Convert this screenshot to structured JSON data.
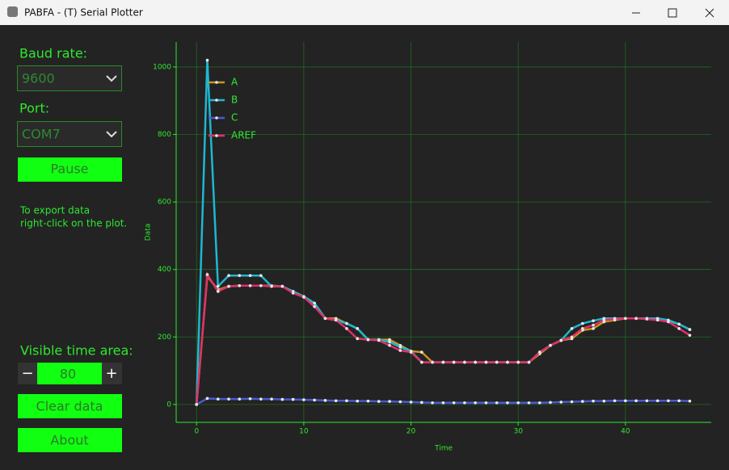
{
  "window": {
    "title": "PABFA - (T) Serial Plotter"
  },
  "controls": {
    "baud_label": "Baud rate:",
    "baud_value": "9600",
    "port_label": "Port:",
    "port_value": "COM7",
    "pause": "Pause",
    "export_hint": [
      "To export data",
      "right-click on the plot."
    ],
    "visible_label": "Visible time area:",
    "minus": "−",
    "visible_value": 80,
    "plus": "+",
    "clear": "Clear data",
    "about": "About"
  },
  "chart_data": {
    "type": "line",
    "x_label": "Time",
    "y_label": "Data",
    "x": [
      0,
      1,
      2,
      3,
      4,
      5,
      6,
      7,
      8,
      9,
      10,
      11,
      12,
      13,
      14,
      15,
      16,
      17,
      18,
      19,
      20,
      21,
      22,
      23,
      24,
      25,
      26,
      27,
      28,
      29,
      30,
      31,
      32,
      33,
      34,
      35,
      36,
      37,
      38,
      39,
      40,
      41,
      42,
      43,
      44,
      45,
      46
    ],
    "series": [
      {
        "name": "A",
        "color": "#c8961e",
        "values": [
          0,
          380,
          340,
          350,
          352,
          352,
          352,
          352,
          350,
          335,
          320,
          300,
          255,
          255,
          240,
          225,
          192,
          192,
          192,
          175,
          158,
          155,
          125,
          125,
          125,
          125,
          125,
          125,
          125,
          125,
          125,
          125,
          150,
          175,
          190,
          195,
          220,
          225,
          245,
          250,
          255,
          255,
          255,
          252,
          248,
          238,
          222
        ]
      },
      {
        "name": "B",
        "color": "#1eb8d0",
        "values": [
          0,
          1020,
          350,
          382,
          382,
          382,
          382,
          350,
          350,
          335,
          320,
          300,
          255,
          250,
          240,
          225,
          192,
          192,
          185,
          170,
          158,
          125,
          125,
          125,
          125,
          125,
          125,
          125,
          125,
          125,
          125,
          125,
          155,
          175,
          190,
          225,
          240,
          248,
          255,
          255,
          255,
          255,
          255,
          255,
          250,
          238,
          222
        ]
      },
      {
        "name": "C",
        "color": "#4a5ad0",
        "values": [
          0,
          18,
          16,
          16,
          16,
          17,
          16,
          16,
          15,
          15,
          14,
          13,
          12,
          11,
          11,
          10,
          10,
          9,
          9,
          8,
          7,
          6,
          5,
          5,
          5,
          5,
          5,
          5,
          5,
          5,
          5,
          5,
          5,
          6,
          7,
          8,
          9,
          10,
          10,
          11,
          11,
          11,
          11,
          11,
          11,
          11,
          10
        ]
      },
      {
        "name": "AREF",
        "color": "#e0306a",
        "values": [
          0,
          385,
          335,
          350,
          352,
          352,
          352,
          350,
          350,
          330,
          318,
          290,
          255,
          250,
          225,
          195,
          192,
          190,
          175,
          160,
          155,
          125,
          125,
          125,
          125,
          125,
          125,
          125,
          125,
          125,
          125,
          125,
          155,
          175,
          190,
          200,
          225,
          235,
          250,
          253,
          255,
          255,
          253,
          250,
          245,
          225,
          205
        ]
      }
    ],
    "xlim": [
      -1.9,
      48
    ],
    "ylim": [
      -53,
      1074
    ],
    "xticks": [
      0,
      10,
      20,
      30,
      40
    ],
    "yticks": [
      0,
      200,
      400,
      600,
      800,
      1000
    ],
    "grid": true,
    "legend": "upper left"
  }
}
